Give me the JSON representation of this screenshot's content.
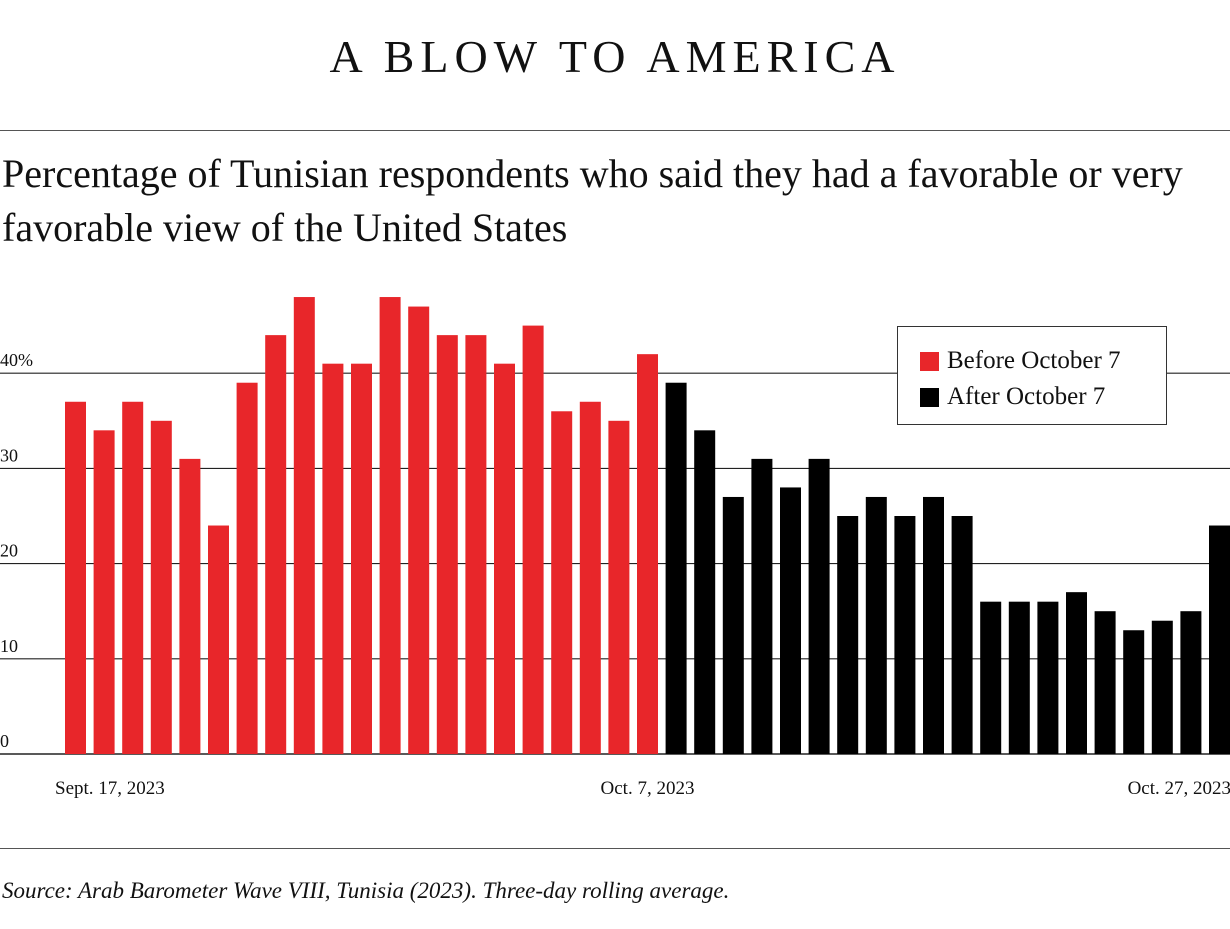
{
  "header": {
    "title": "A BLOW TO AMERICA",
    "subtitle": "Percentage of Tunisian respondents who said they had a favorable or very favorable view of the United States"
  },
  "footer": {
    "source": "Source: Arab Barometer Wave VIII, Tunisia (2023). Three-day rolling average."
  },
  "colors": {
    "before": "#e8262a",
    "after": "#000000",
    "grid": "#222222"
  },
  "legend": {
    "items": [
      {
        "label": "Before October 7",
        "color": "#e8262a"
      },
      {
        "label": "After October 7",
        "color": "#000000"
      }
    ]
  },
  "chart_data": {
    "type": "bar",
    "title": "Percentage of Tunisian respondents who said they had a favorable or very favorable view of the United States",
    "xlabel": "",
    "ylabel": "",
    "ylim": [
      0,
      48
    ],
    "yticks": [
      {
        "value": 0,
        "label": "0"
      },
      {
        "value": 10,
        "label": "10"
      },
      {
        "value": 20,
        "label": "20"
      },
      {
        "value": 30,
        "label": "30"
      },
      {
        "value": 40,
        "label": "40%"
      }
    ],
    "x_labels": [
      {
        "index": 0,
        "label": "Sept. 17, 2023",
        "align": "start"
      },
      {
        "index": 20,
        "label": "Oct. 7, 2023",
        "align": "middle"
      },
      {
        "index": 40,
        "label": "Oct. 27, 2023",
        "align": "end"
      }
    ],
    "series": [
      {
        "name": "Before October 7",
        "color": "#e8262a",
        "start_index": 0,
        "values": [
          37,
          34,
          37,
          35,
          31,
          24,
          39,
          44,
          48,
          41,
          41,
          48,
          47,
          44,
          44,
          41,
          45,
          36,
          37,
          35,
          42
        ]
      },
      {
        "name": "After October 7",
        "color": "#000000",
        "start_index": 21,
        "values": [
          39,
          34,
          27,
          31,
          28,
          31,
          25,
          27,
          25,
          27,
          25,
          16,
          16,
          16,
          17,
          15,
          13,
          14,
          15,
          24
        ]
      }
    ]
  }
}
